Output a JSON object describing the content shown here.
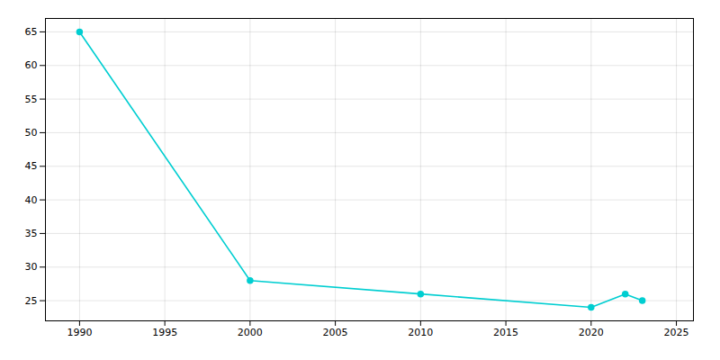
{
  "chart_data": {
    "type": "line",
    "x": [
      1990,
      2000,
      2010,
      2020,
      2022,
      2023
    ],
    "values": [
      65,
      28,
      26,
      24,
      26,
      25
    ],
    "color": "#00CED1",
    "marker": "circle",
    "xlim": [
      1988,
      2026
    ],
    "ylim": [
      22,
      67
    ],
    "xticks": [
      1990,
      1995,
      2000,
      2005,
      2010,
      2015,
      2020,
      2025
    ],
    "yticks": [
      25,
      30,
      35,
      40,
      45,
      50,
      55,
      60,
      65
    ],
    "grid": true
  }
}
